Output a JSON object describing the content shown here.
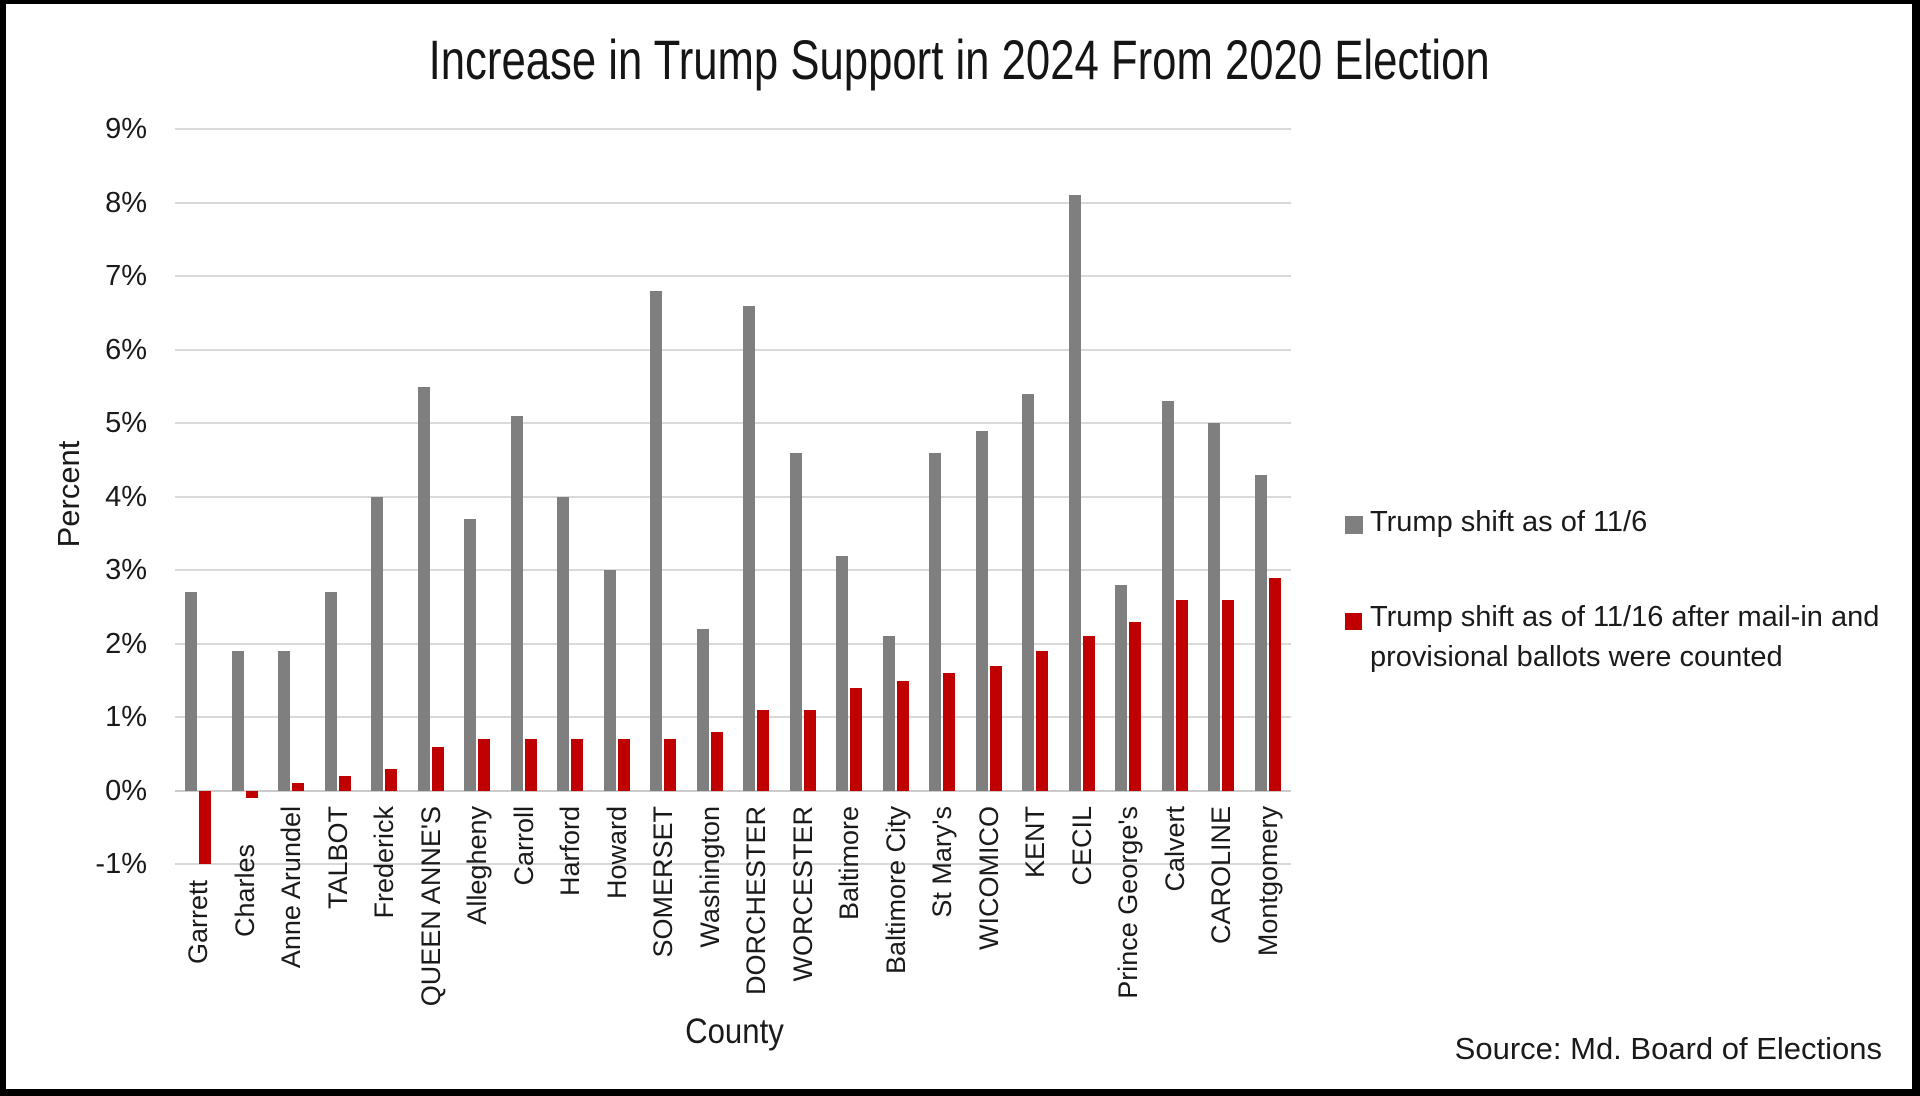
{
  "title": "Increase in Trump Support in 2024 From 2020 Election",
  "source_note": "Source: Md. Board of Elections",
  "axes": {
    "y_label": "Percent",
    "x_label": "County",
    "y_ticks": [
      "9%",
      "8%",
      "7%",
      "6%",
      "5%",
      "4%",
      "3%",
      "2%",
      "1%",
      "0%",
      "-1%"
    ]
  },
  "legend": {
    "items": [
      {
        "label": "Trump shift as of 11/6",
        "color": "#7f7f7f"
      },
      {
        "label": "Trump shift as of 11/16 after mail-in and provisional ballots were counted",
        "color": "#c00000"
      }
    ]
  },
  "chart_data": {
    "type": "bar",
    "title": "Increase in Trump Support in 2024 From 2020 Election",
    "xlabel": "County",
    "ylabel": "Percent",
    "ylim": [
      -1,
      9
    ],
    "y_tick_step": 1,
    "y_tick_suffix": "%",
    "grid": true,
    "legend_position": "right",
    "categories": [
      "Garrett",
      "Charles",
      "Anne Arundel",
      "TALBOT",
      "Frederick",
      "QUEEN ANNE'S",
      "Allegheny",
      "Carroll",
      "Harford",
      "Howard",
      "SOMERSET",
      "Washington",
      "DORCHESTER",
      "WORCESTER",
      "Baltimore",
      "Baltimore City",
      "St Mary's",
      "WICOMICO",
      "KENT",
      "CECIL",
      "Prince George's",
      "Calvert",
      "CAROLINE",
      "Montgomery"
    ],
    "series": [
      {
        "name": "Trump shift as of 11/6",
        "color": "#7f7f7f",
        "values": [
          2.7,
          1.9,
          1.9,
          2.7,
          4.0,
          5.5,
          3.7,
          5.1,
          4.0,
          3.0,
          6.8,
          2.2,
          6.6,
          4.6,
          3.2,
          2.1,
          4.6,
          4.9,
          5.4,
          8.1,
          2.8,
          5.3,
          5.0,
          4.3
        ]
      },
      {
        "name": "Trump shift as of 11/16 after mail-in and provisional ballots were counted",
        "color": "#c00000",
        "values": [
          -1.0,
          -0.1,
          0.1,
          0.2,
          0.3,
          0.6,
          0.7,
          0.7,
          0.7,
          0.7,
          0.7,
          0.8,
          1.1,
          1.1,
          1.4,
          1.5,
          1.6,
          1.7,
          1.9,
          2.1,
          2.3,
          2.6,
          2.6,
          2.9
        ]
      }
    ]
  }
}
